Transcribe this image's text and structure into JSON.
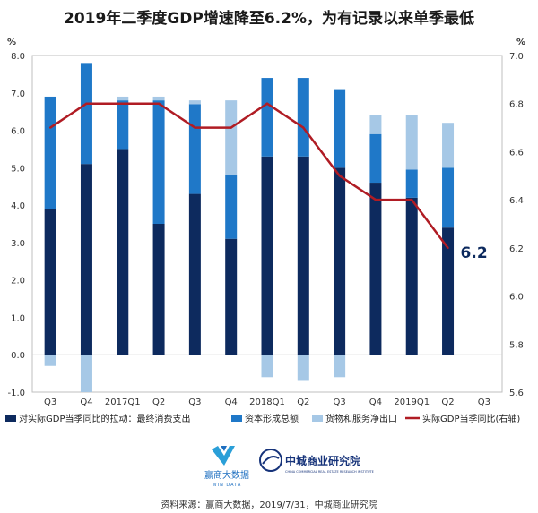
{
  "chart_data": {
    "type": "bar",
    "title": "2019年二季度GDP增速降至6.2%，为有记录以来单季最低",
    "left_axis_unit": "%",
    "right_axis_unit": "%",
    "categories": [
      "Q3",
      "Q4",
      "2017Q1",
      "Q2",
      "Q3",
      "Q4",
      "2018Q1",
      "Q2",
      "Q3",
      "Q4",
      "2019Q1",
      "Q2",
      "Q3"
    ],
    "ylim_left": [
      -1.0,
      8.0
    ],
    "ylim_right": [
      5.6,
      7.0
    ],
    "left_ticks": [
      "8.0",
      "7.0",
      "6.0",
      "5.0",
      "4.0",
      "3.0",
      "2.0",
      "1.0",
      "0.0",
      "-1.0"
    ],
    "right_ticks": [
      "7.0",
      "6.8",
      "6.6",
      "6.4",
      "6.2",
      "6.0",
      "5.8",
      "5.6"
    ],
    "series": [
      {
        "name": "对实际GDP当季同比的拉动：最终消费支出",
        "color": "#0d2a5e",
        "values": [
          3.9,
          5.1,
          5.5,
          3.5,
          4.3,
          3.1,
          5.3,
          5.3,
          5.0,
          4.6,
          4.2,
          3.4,
          null
        ]
      },
      {
        "name": "资本形成总额",
        "color": "#1f78c8",
        "values": [
          3.0,
          2.7,
          1.3,
          3.3,
          2.4,
          1.7,
          2.1,
          2.1,
          2.1,
          1.3,
          0.75,
          1.6,
          null
        ]
      },
      {
        "name": "货物和服务净出口",
        "color": "#a6c8e6",
        "values": [
          -0.3,
          -1.0,
          0.1,
          0.1,
          0.1,
          2.0,
          -0.6,
          -0.7,
          -0.6,
          0.5,
          1.45,
          1.2,
          null
        ]
      }
    ],
    "line": {
      "name": "实际GDP当季同比(右轴)",
      "color": "#b01c24",
      "axis": "right",
      "values": [
        6.7,
        6.8,
        6.8,
        6.8,
        6.7,
        6.7,
        6.8,
        6.7,
        6.5,
        6.4,
        6.4,
        6.2,
        null
      ]
    },
    "annotation": {
      "text": "6.2",
      "category_index": 11
    },
    "grid": false,
    "legend_position": "bottom"
  },
  "footer": {
    "logo1_cn": "赢商大数据",
    "logo1_en": "WIN DATA",
    "logo2_cn": "中城商业研究院",
    "logo2_en": "CHINA COMMERCIAL REAL ESTATE RESEARCH INSTITUTE",
    "source": "资料来源：赢商大数据，2019/7/31，中城商业研究院"
  },
  "colors": {
    "title_text": "#1a1a1a",
    "logo_blue": "#1e6fc0",
    "logo_teal": "#2a9fd8",
    "logo_navy": "#16337a"
  }
}
